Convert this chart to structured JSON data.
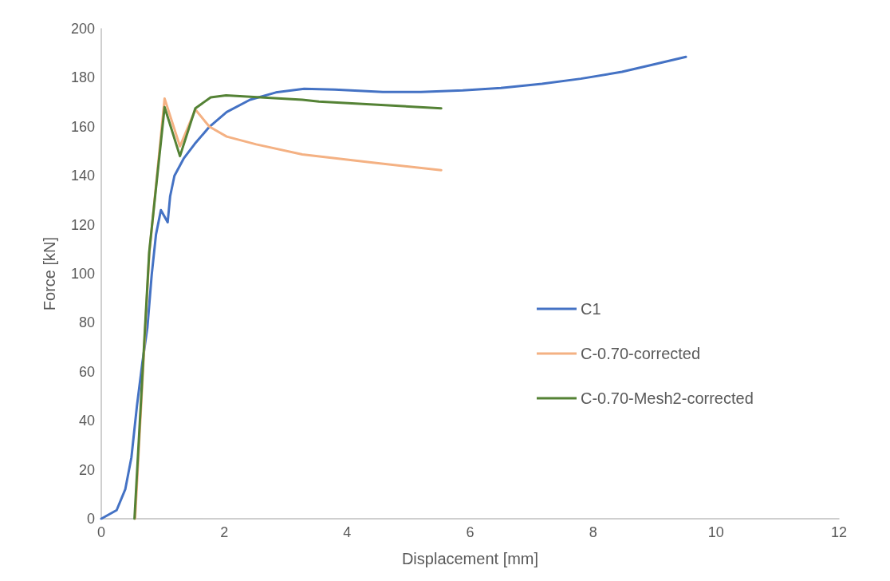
{
  "chart_data": {
    "type": "line",
    "xlabel": "Displacement [mm]",
    "ylabel": "Force [kN]",
    "xlim": [
      0,
      12
    ],
    "xticks": [
      0,
      2,
      4,
      6,
      8,
      10,
      12
    ],
    "ylim": [
      0,
      200
    ],
    "yticks": [
      0,
      20,
      40,
      60,
      80,
      100,
      120,
      140,
      160,
      180,
      200
    ],
    "grid": false,
    "legend": "right",
    "marker": "none",
    "line_style": "solid",
    "series": [
      {
        "name": "C1",
        "color": "#4472c4",
        "x": [
          0,
          0.25,
          0.39,
          0.49,
          0.58,
          0.67,
          0.75,
          0.82,
          0.89,
          0.97,
          1.08,
          1.12,
          1.19,
          1.34,
          1.52,
          1.76,
          2.04,
          2.42,
          2.84,
          3.3,
          3.8,
          4.58,
          5.2,
          5.88,
          6.5,
          7.17,
          7.8,
          8.47,
          9,
          9.51
        ],
        "values": [
          0,
          3.5,
          12,
          25,
          46,
          64,
          78,
          99.5,
          116,
          126,
          121,
          131.6,
          140,
          147,
          153,
          160,
          166,
          171,
          174,
          175.5,
          175.2,
          174.2,
          174.2,
          174.8,
          175.8,
          177.5,
          179.6,
          182.4,
          185.5,
          188.5
        ]
      },
      {
        "name": "C-0.70-corrected",
        "color": "#f4b183",
        "x": [
          0.55,
          0.78,
          1.03,
          1.28,
          1.53,
          1.76,
          2.04,
          2.52,
          3.27,
          4.36,
          5.53
        ],
        "values": [
          0,
          108,
          171.5,
          152,
          167,
          160,
          156,
          152.8,
          148.7,
          145.5,
          142.3
        ]
      },
      {
        "name": "C-0.70-Mesh2-corrected",
        "color": "#548235",
        "x": [
          0.54,
          0.78,
          1.03,
          1.28,
          1.53,
          1.78,
          2.03,
          3.27,
          3.54,
          5.53
        ],
        "values": [
          0,
          109,
          168,
          148,
          167.5,
          172,
          172.8,
          171,
          170.3,
          167.5
        ]
      }
    ]
  }
}
